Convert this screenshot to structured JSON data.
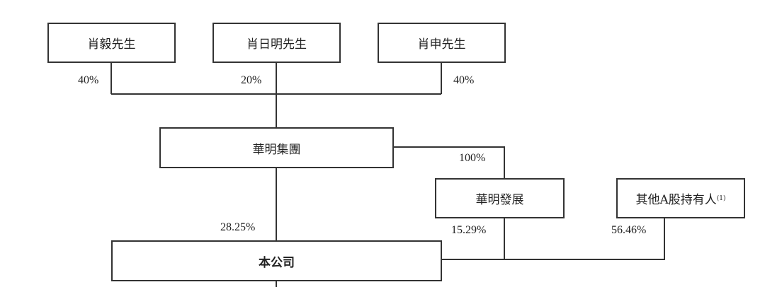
{
  "nodes": {
    "shareholder_1": "肖毅先生",
    "shareholder_2": "肖日明先生",
    "shareholder_3": "肖申先生",
    "group": "華明集團",
    "development": "華明發展",
    "other_holders": "其他A股持有人",
    "other_holders_note": "(1)",
    "company": "本公司"
  },
  "percentages": {
    "shareholder_1": "40%",
    "shareholder_2": "20%",
    "shareholder_3": "40%",
    "group_to_development": "100%",
    "group_to_company": "28.25%",
    "development_to_company": "15.29%",
    "other_to_company": "56.46%"
  }
}
